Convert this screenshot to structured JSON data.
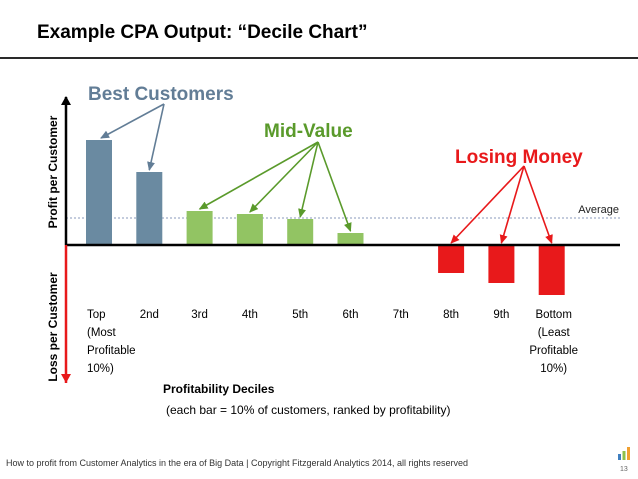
{
  "slide": {
    "title": "Example CPA Output: “Decile Chart”",
    "footer": "How to profit from Customer Analytics in the era of Big Data | Copyright Fitzgerald Analytics 2014, all rights reserved",
    "page_number": "13",
    "logo_icon": "bar-chart-logo-icon"
  },
  "colors": {
    "best": "#6a8aa1",
    "mid": "#92c463",
    "losing": "#e8191b",
    "best_label": "#627d96",
    "mid_label": "#5a9a2b",
    "losing_label": "#e8191b",
    "axis": "#000000",
    "loss_arrow": "#e8191b",
    "average_line": "#8899bb"
  },
  "chart_data": {
    "type": "bar",
    "title": "Example CPA Output: “Decile Chart”",
    "categories": [
      "Top\n(Most\nProfitable\n10%)",
      "2nd",
      "3rd",
      "4th",
      "5th",
      "6th",
      "7th",
      "8th",
      "9th",
      "Bottom\n(Least\nProfitable\n10%)"
    ],
    "values": [
      105,
      73,
      34,
      31,
      26,
      12,
      0,
      -28,
      -38,
      -50
    ],
    "groups": [
      "best",
      "best",
      "mid",
      "mid",
      "mid",
      "mid",
      "none",
      "losing",
      "losing",
      "losing"
    ],
    "ylabel_positive": "Profit per Customer",
    "ylabel_negative": "Loss per Customer",
    "xlabel": "Profitability Deciles",
    "xlabel_sub": "(each bar = 10% of customers, ranked by profitability)",
    "average": {
      "value": 27,
      "label": "Average"
    },
    "ylim": [
      -60,
      125
    ],
    "annotations": [
      {
        "text": "Best Customers",
        "group": "best",
        "targets": [
          0,
          1
        ]
      },
      {
        "text": "Mid-Value",
        "group": "mid",
        "targets": [
          2,
          3,
          4,
          5
        ]
      },
      {
        "text": "Losing Money",
        "group": "losing",
        "targets": [
          7,
          8,
          9
        ]
      }
    ]
  }
}
